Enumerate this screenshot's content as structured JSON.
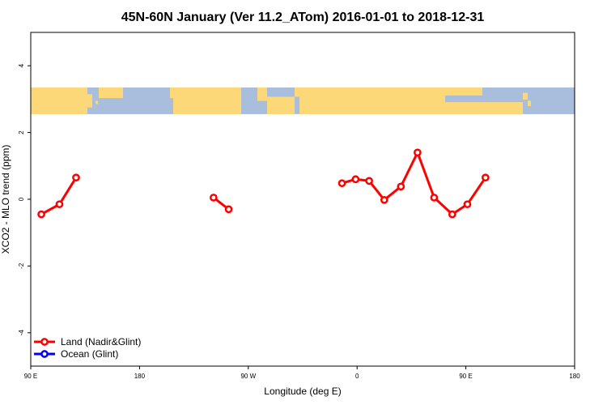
{
  "chart_data": {
    "type": "line",
    "title": "45N-60N January (Ver 11.2_ATom)   2016-01-01 to 2018-12-31",
    "xlabel": "Longitude (deg E)",
    "ylabel": "XCO2 - MLO trend (ppm)",
    "xlim": [
      90,
      450
    ],
    "ylim": [
      -5,
      5
    ],
    "x_ticks": [
      {
        "value": 90,
        "label": "90 E"
      },
      {
        "value": 162,
        "label": "180"
      },
      {
        "value": 234,
        "label": "90 W"
      },
      {
        "value": 306,
        "label": "0"
      },
      {
        "value": 378,
        "label": "90 E"
      },
      {
        "value": 450,
        "label": "180"
      }
    ],
    "y_ticks": [
      {
        "value": -4,
        "label": "-4"
      },
      {
        "value": -2,
        "label": "-2"
      },
      {
        "value": 0,
        "label": "0"
      },
      {
        "value": 2,
        "label": "2"
      },
      {
        "value": 4,
        "label": "4"
      }
    ],
    "map_band": {
      "y_min": 2.55,
      "y_max": 3.35,
      "ocean_color": "#A8BEDC",
      "land_color": "#FDD878"
    },
    "series": [
      {
        "name": "Land (Nadir&Glint)",
        "color": "#FF0000",
        "segments": [
          [
            [
              97,
              -0.45
            ],
            [
              109,
              -0.15
            ],
            [
              120,
              0.65
            ]
          ],
          [
            [
              211,
              0.05
            ],
            [
              221,
              -0.3
            ]
          ],
          [
            [
              296,
              0.48
            ],
            [
              305,
              0.6
            ],
            [
              314,
              0.55
            ],
            [
              324,
              -0.02
            ],
            [
              335,
              0.38
            ],
            [
              346,
              1.4
            ],
            [
              357,
              0.05
            ],
            [
              369,
              -0.45
            ],
            [
              379,
              -0.15
            ],
            [
              391,
              0.65
            ]
          ]
        ]
      },
      {
        "name": "Ocean (Glint)",
        "color": "#0000FF",
        "segments": []
      }
    ],
    "legend": {
      "position": "bottom-left"
    }
  }
}
